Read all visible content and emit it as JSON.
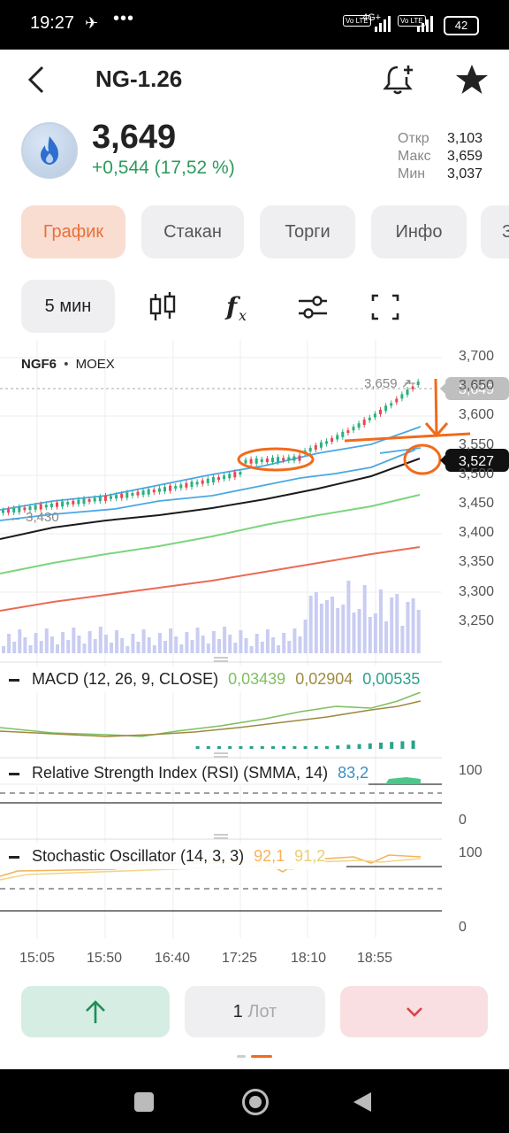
{
  "status_bar": {
    "time": "19:27",
    "signal_labels": [
      "Vo LTE",
      "4G+",
      "Vo LTE"
    ],
    "battery": "42"
  },
  "header": {
    "title": "NG-1.26",
    "icons": [
      "back-arrow-icon",
      "bell-add-icon",
      "star-icon"
    ]
  },
  "instrument": {
    "price": "3,649",
    "change": "+0,544 (17,52 %)",
    "open_label": "Откр",
    "open_value": "3,103",
    "high_label": "Макс",
    "high_value": "3,659",
    "low_label": "Мин",
    "low_value": "3,037"
  },
  "tabs": [
    "График",
    "Стакан",
    "Торги",
    "Инфо",
    "З"
  ],
  "toolbar": {
    "timeframe": "5 мин",
    "icons": [
      "candles-icon",
      "function-icon",
      "settings-sliders-icon",
      "fullscreen-icon"
    ]
  },
  "chart": {
    "symbol": "NGF6",
    "exchange": "MOEX",
    "y_axis": [
      "3,700",
      "3,650",
      "3,600",
      "3,550",
      "3,500",
      "3,450",
      "3,400",
      "3,350",
      "3,300",
      "3,250"
    ],
    "current_price_tag": "3,649",
    "line_price_tag": "3,527",
    "high_marker": "3,659",
    "low_marker": "3,430",
    "time_axis": [
      "15:05",
      "15:50",
      "16:40",
      "17:25",
      "18:10",
      "18:55"
    ],
    "colors": {
      "up": "#2bb07f",
      "down": "#e9474f",
      "annotation": "#f26a1b",
      "ma_black": "#1b1b1b",
      "ma_blue": "#4aa8e3",
      "ma_green": "#7dd47d",
      "ma_red": "#ec6a55"
    }
  },
  "indicators": {
    "macd": {
      "label": "MACD (12, 26, 9, CLOSE)",
      "v1": "0,03439",
      "v2": "0,02904",
      "v3": "0,00535"
    },
    "rsi": {
      "label": "Relative Strength Index (RSI) (SMMA, 14)",
      "value": "83,2",
      "axis_top": "100",
      "axis_bottom": "0"
    },
    "stoch": {
      "label": "Stochastic Oscillator (14, 3, 3)",
      "k": "92,1",
      "d": "91,2",
      "axis_top": "100",
      "axis_bottom": "0"
    }
  },
  "trade_bar": {
    "lot_count": "1",
    "lot_unit": "Лот",
    "buy_icon": "arrow-up-icon",
    "sell_icon": "chevron-down-icon"
  },
  "nav_bar": {
    "icons": [
      "recents-icon",
      "home-icon",
      "back-icon"
    ]
  }
}
